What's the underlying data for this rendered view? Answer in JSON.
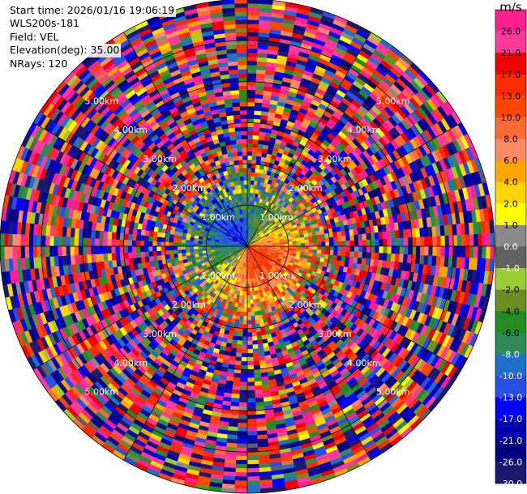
{
  "header": {
    "start_time": "Start time: 2026/01/16 19:06:19",
    "instrument": "WLS200s-181",
    "field": "Field: VEL",
    "elevation": "Elevation(deg): 35.00",
    "nrays": "NRays: 120"
  },
  "chart_data": {
    "type": "heatmap",
    "projection": "polar-ppi",
    "field": "VEL",
    "units": "m/s",
    "elevation_deg": 35.0,
    "n_rays": 120,
    "max_range_km": 6.0,
    "range_ring_labels": [
      "1.00km",
      "2.00km",
      "3.00km",
      "4.00km",
      "5.00km"
    ],
    "range_rings_km": [
      1,
      2,
      3,
      4,
      5,
      6
    ],
    "colorbar": {
      "unit_label": "m/s",
      "tick_labels": [
        "26.0",
        "21.0",
        "17.0",
        "13.0",
        "10.0",
        "8.0",
        "6.0",
        "4.0",
        "2.0",
        "1.0",
        "0.0",
        "-1.0",
        "-2.0",
        "-4.0",
        "-6.0",
        "-8.0",
        "-10.0",
        "-13.0",
        "-17.0",
        "-21.0",
        "-26.0",
        "-30.0"
      ],
      "bounds": [
        30,
        26,
        21,
        17,
        13,
        10,
        8,
        6,
        4,
        2,
        1,
        0,
        -1,
        -2,
        -4,
        -6,
        -8,
        -10,
        -13,
        -17,
        -21,
        -26,
        -30
      ],
      "colors": [
        "#ff1f8f",
        "#ff3a9a",
        "#f00000",
        "#ff2a00",
        "#ff4500",
        "#ff6a33",
        "#ff8a66",
        "#ffa500",
        "#ffd500",
        "#ffff00",
        "#8a8a8a",
        "#606060",
        "#9acd32",
        "#6b8e23",
        "#228b22",
        "#2e8b57",
        "#1e70c8",
        "#2850e0",
        "#0000ff",
        "#0000b0",
        "#000080",
        "#1a1a6e"
      ]
    },
    "notes": "Near-range velocities small (grey/green/blue to the north-west, yellow/orange to the south-east); far range dominated by noise-like random values across the full scale."
  }
}
